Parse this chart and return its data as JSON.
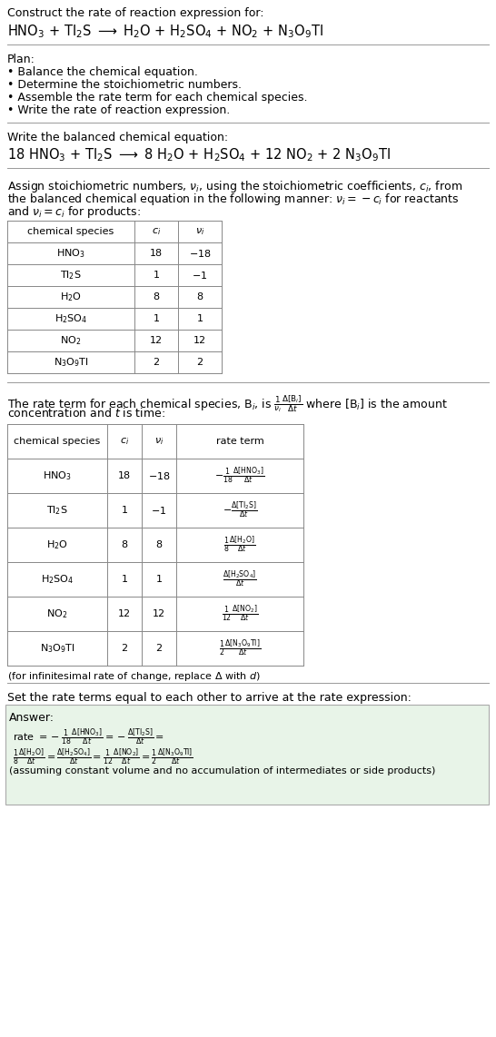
{
  "bg_color": "#ffffff",
  "font_size": 9.0,
  "font_size_eq": 10.5,
  "font_size_small": 8.0,
  "font_size_tiny": 7.5
}
